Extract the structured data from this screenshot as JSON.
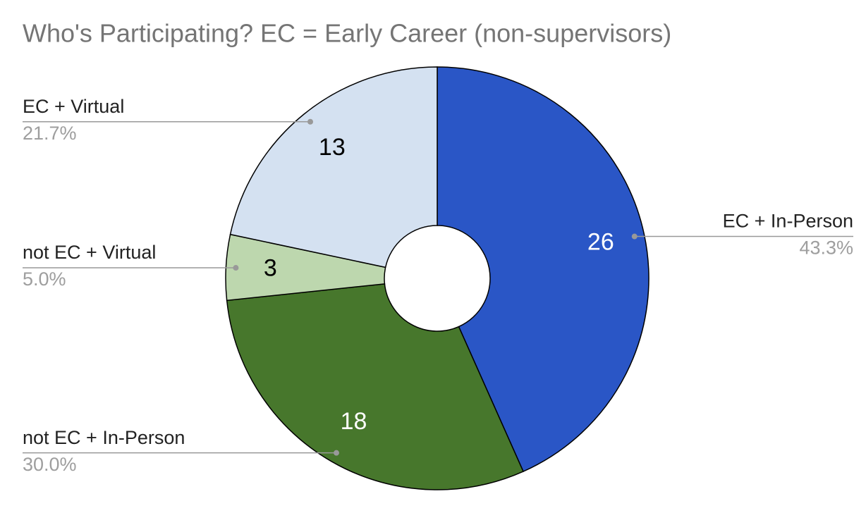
{
  "chart_data": {
    "type": "donut",
    "title": "Who's Participating? EC = Early Career (non-supervisors)",
    "categories": [
      "EC + In-Person",
      "not EC + In-Person",
      "not EC + Virtual",
      "EC + Virtual"
    ],
    "values": [
      26,
      18,
      3,
      13
    ],
    "percent_labels": [
      "43.3%",
      "30.0%",
      "5.0%",
      "21.7%"
    ],
    "colors": [
      "#2a56c6",
      "#47772c",
      "#bdd7ae",
      "#d4e1f1"
    ]
  }
}
